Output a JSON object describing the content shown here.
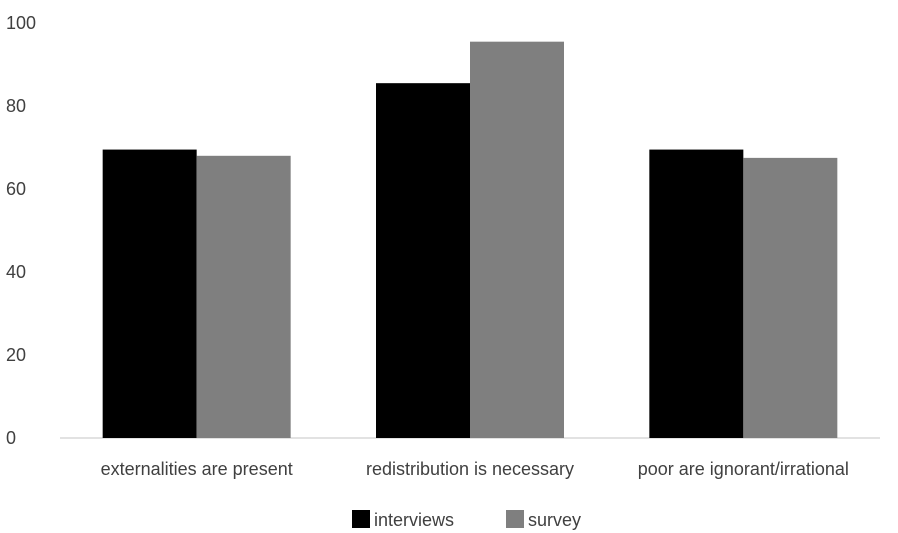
{
  "chart_data": {
    "type": "bar",
    "categories": [
      "externalities are present",
      "redistribution is necessary",
      "poor are ignorant/irrational"
    ],
    "series": [
      {
        "name": "interviews",
        "values": [
          69.5,
          85.5,
          69.5
        ],
        "color": "#000000"
      },
      {
        "name": "survey",
        "values": [
          68,
          95.5,
          67.5
        ],
        "color": "#7f7f7f"
      }
    ],
    "yticks": [
      "0",
      "20",
      "40",
      "60",
      "80",
      "100"
    ],
    "ylim": [
      0,
      100
    ],
    "grid": false,
    "legend": "bottom-center",
    "title": "",
    "xlabel": "",
    "ylabel": ""
  }
}
